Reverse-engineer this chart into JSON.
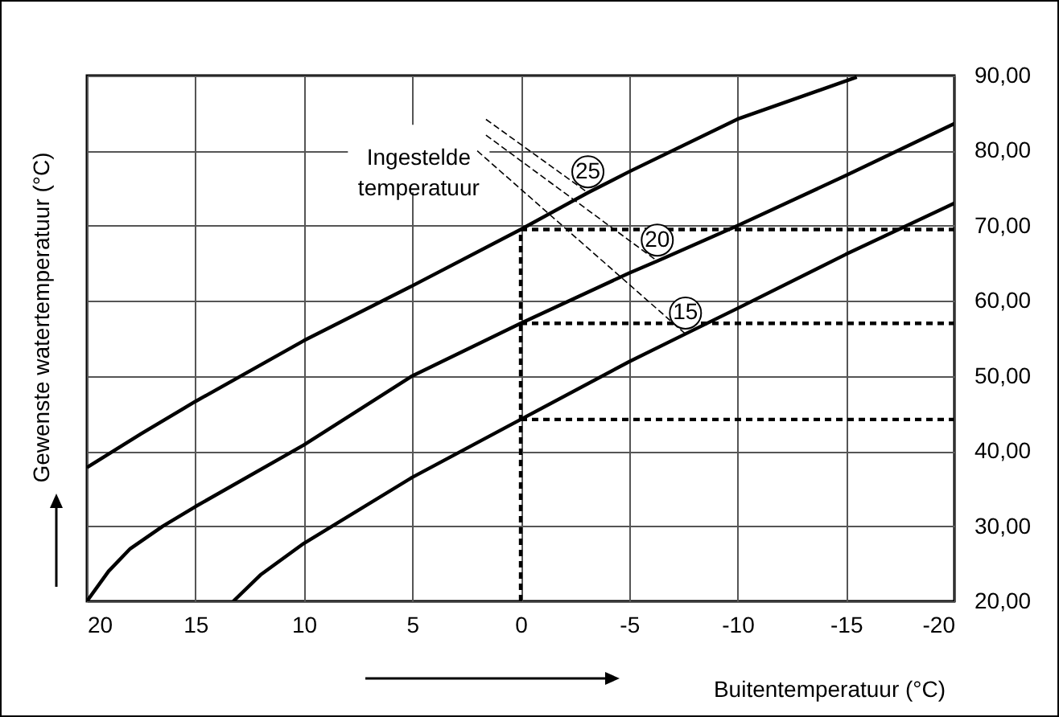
{
  "chart_data": {
    "type": "line",
    "xlabel": "Buitentemperatuur (°C)",
    "ylabel": "Gewenste watertemperatuur (°C)",
    "annotations": [
      {
        "text": "Ingestelde temperatuur",
        "x": -6.3,
        "y": 65.3
      }
    ],
    "xlim": [
      20,
      -20
    ],
    "xticks": [
      20,
      15,
      10,
      5,
      0,
      -5,
      -10,
      -15,
      -20
    ],
    "ylim": [
      20,
      90
    ],
    "yticks": [
      {
        "value": 20,
        "label": "20,00"
      },
      {
        "value": 30,
        "label": "30,00"
      },
      {
        "value": 40,
        "label": "40,00"
      },
      {
        "value": 50,
        "label": "50,00"
      },
      {
        "value": 60,
        "label": "60,00"
      },
      {
        "value": 70,
        "label": "70,00"
      },
      {
        "value": 80,
        "label": "80,00"
      },
      {
        "value": 90,
        "label": "90,00"
      }
    ],
    "grid": true,
    "legend": false,
    "marker": "none",
    "series": [
      {
        "name": "25",
        "color": "#000000",
        "line_style": "solid",
        "x": [
          20,
          17.5,
          15,
          10,
          5,
          0,
          -3.1,
          -5,
          -10,
          -15.5
        ],
        "values": [
          37.8,
          42.3,
          46.6,
          54.7,
          62,
          69.5,
          74.4,
          77.2,
          84.2,
          89.8
        ]
      },
      {
        "name": "20",
        "color": "#000000",
        "line_style": "solid",
        "x": [
          20,
          19,
          18,
          16.5,
          15,
          10,
          5,
          0,
          -5,
          -6.3,
          -10,
          -15,
          -20
        ],
        "values": [
          20,
          24,
          27,
          30,
          32.6,
          40.8,
          50,
          57,
          63.7,
          65.3,
          70,
          76.7,
          83.6
        ]
      },
      {
        "name": "15",
        "color": "#000000",
        "line_style": "solid",
        "x": [
          13.25,
          12,
          10,
          5,
          0,
          -5,
          -7.6,
          -10,
          -15,
          -20
        ],
        "values": [
          20,
          23.5,
          27.7,
          36.5,
          44.2,
          51.9,
          55.6,
          59,
          66.2,
          73
        ]
      },
      {
        "color": "#000000",
        "line_style": "dashed",
        "x": [
          0,
          0
        ],
        "values": [
          20,
          69.5
        ]
      },
      {
        "color": "#000000",
        "line_style": "dashed",
        "x": [
          0,
          -20
        ],
        "values": [
          69.5,
          69.5
        ]
      },
      {
        "color": "#000000",
        "line_style": "dashed",
        "x": [
          0,
          -20
        ],
        "values": [
          57,
          57
        ]
      },
      {
        "color": "#000000",
        "line_style": "dashed",
        "x": [
          0,
          -20
        ],
        "values": [
          44.2,
          44.2
        ]
      }
    ]
  }
}
